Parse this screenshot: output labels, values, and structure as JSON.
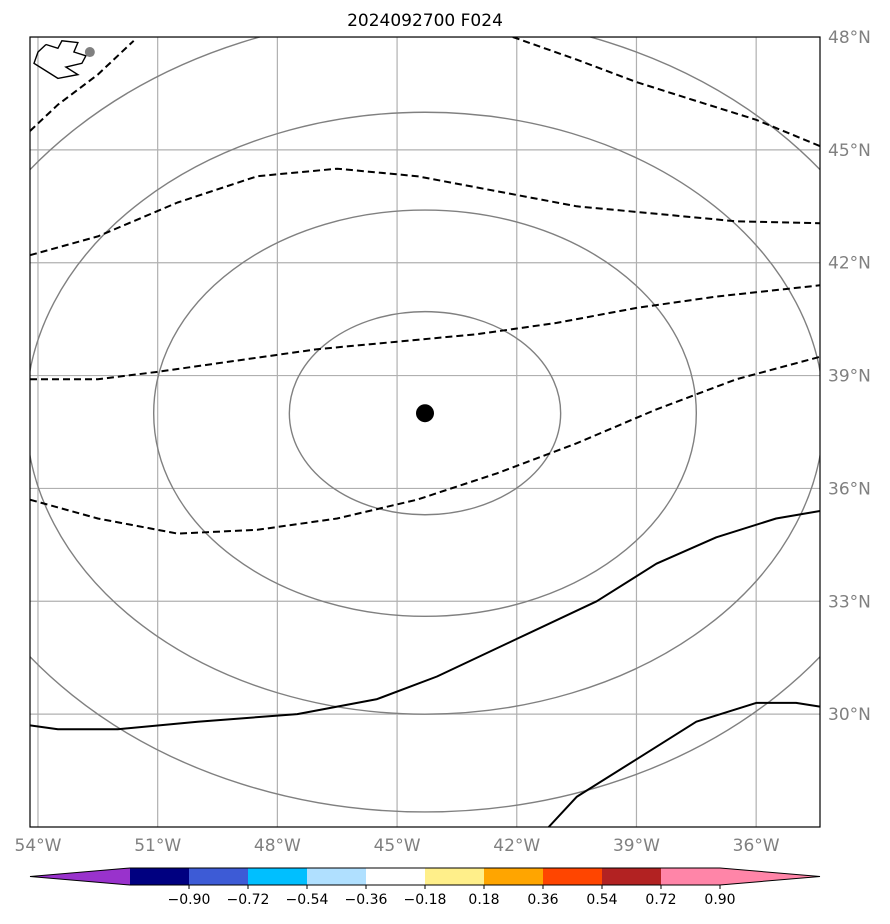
{
  "title": "2024092700 F024",
  "map": {
    "lon_range": [
      -54.2,
      -34.4
    ],
    "lat_range": [
      27.0,
      48.0
    ],
    "lon_ticks": [
      {
        "value": -54,
        "label": "54°W"
      },
      {
        "value": -51,
        "label": "51°W"
      },
      {
        "value": -48,
        "label": "48°W"
      },
      {
        "value": -45,
        "label": "45°W"
      },
      {
        "value": -42,
        "label": "42°W"
      },
      {
        "value": -39,
        "label": "39°W"
      },
      {
        "value": -36,
        "label": "36°W"
      }
    ],
    "lat_ticks": [
      {
        "value": 48,
        "label": "48°N"
      },
      {
        "value": 45,
        "label": "45°N"
      },
      {
        "value": 42,
        "label": "42°N"
      },
      {
        "value": 39,
        "label": "39°N"
      },
      {
        "value": 36,
        "label": "36°N"
      },
      {
        "value": 33,
        "label": "33°N"
      },
      {
        "value": 30,
        "label": "30°N"
      }
    ],
    "grid": true,
    "center": {
      "lon": -44.3,
      "lat": 38.0
    },
    "range_rings": [
      {
        "lon_radius": 3.4,
        "lat_radius": 2.7
      },
      {
        "lon_radius": 6.8,
        "lat_radius": 5.4
      },
      {
        "lon_radius": 10.0,
        "lat_radius": 8.0
      },
      {
        "lon_radius": 12.5,
        "lat_radius": 10.6
      }
    ],
    "contours": [
      {
        "style": "dashed",
        "points": [
          [
            -54.2,
            45.5
          ],
          [
            -53.5,
            46.2
          ],
          [
            -52.5,
            47.0
          ],
          [
            -51.6,
            47.9
          ]
        ]
      },
      {
        "style": "dashed",
        "points": [
          [
            -42.1,
            48.0
          ],
          [
            -40.5,
            47.4
          ],
          [
            -39.0,
            46.8
          ],
          [
            -37.5,
            46.3
          ],
          [
            -36.0,
            45.8
          ],
          [
            -34.4,
            45.1
          ]
        ]
      },
      {
        "style": "dashed",
        "points": [
          [
            -54.2,
            42.2
          ],
          [
            -52.5,
            42.7
          ],
          [
            -50.5,
            43.6
          ],
          [
            -48.5,
            44.3
          ],
          [
            -46.5,
            44.5
          ],
          [
            -44.5,
            44.3
          ],
          [
            -42.5,
            43.9
          ],
          [
            -40.5,
            43.5
          ],
          [
            -38.5,
            43.3
          ],
          [
            -36.5,
            43.1
          ],
          [
            -34.4,
            43.05
          ]
        ]
      },
      {
        "style": "dashed",
        "points": [
          [
            -54.2,
            38.9
          ],
          [
            -52.5,
            38.9
          ],
          [
            -51.0,
            39.1
          ],
          [
            -49.0,
            39.4
          ],
          [
            -47.0,
            39.7
          ],
          [
            -45.0,
            39.9
          ],
          [
            -43.0,
            40.1
          ],
          [
            -41.0,
            40.4
          ],
          [
            -39.0,
            40.8
          ],
          [
            -37.0,
            41.1
          ],
          [
            -34.4,
            41.4
          ]
        ]
      },
      {
        "style": "dashed",
        "points": [
          [
            -54.2,
            35.7
          ],
          [
            -52.5,
            35.2
          ],
          [
            -50.5,
            34.8
          ],
          [
            -48.5,
            34.9
          ],
          [
            -46.5,
            35.2
          ],
          [
            -44.5,
            35.7
          ],
          [
            -42.5,
            36.4
          ],
          [
            -40.5,
            37.2
          ],
          [
            -38.5,
            38.1
          ],
          [
            -36.5,
            38.9
          ],
          [
            -34.4,
            39.5
          ]
        ]
      },
      {
        "style": "solid",
        "points": [
          [
            -54.2,
            29.7
          ],
          [
            -53.5,
            29.6
          ],
          [
            -52.0,
            29.6
          ],
          [
            -50.0,
            29.8
          ],
          [
            -47.5,
            30.0
          ],
          [
            -45.5,
            30.4
          ],
          [
            -44.0,
            31.0
          ],
          [
            -42.0,
            32.0
          ],
          [
            -40.0,
            33.0
          ],
          [
            -38.5,
            34.0
          ],
          [
            -37.0,
            34.7
          ],
          [
            -35.5,
            35.2
          ],
          [
            -34.4,
            35.4
          ]
        ]
      },
      {
        "style": "solid",
        "points": [
          [
            -41.2,
            27.0
          ],
          [
            -40.5,
            27.8
          ],
          [
            -39.0,
            28.8
          ],
          [
            -37.5,
            29.8
          ],
          [
            -36.0,
            30.3
          ],
          [
            -35.0,
            30.3
          ],
          [
            -34.4,
            30.2
          ]
        ]
      }
    ],
    "coastline": [
      [
        -53.8,
        47.8
      ],
      [
        -53.5,
        47.7
      ],
      [
        -53.4,
        47.9
      ],
      [
        -53.0,
        47.85
      ],
      [
        -53.1,
        47.6
      ],
      [
        -52.8,
        47.5
      ],
      [
        -52.9,
        47.3
      ],
      [
        -53.3,
        47.2
      ],
      [
        -53.0,
        47.0
      ],
      [
        -53.5,
        46.9
      ],
      [
        -53.8,
        47.1
      ],
      [
        -54.1,
        47.3
      ],
      [
        -54.0,
        47.6
      ],
      [
        -53.8,
        47.8
      ]
    ],
    "coast_marker": {
      "lon": -52.7,
      "lat": 47.6
    }
  },
  "colorbar": {
    "colors": [
      "#9932cc",
      "#000080",
      "#3d5bd6",
      "#00bfff",
      "#b0e0ff",
      "#ffffff",
      "#ffef8a",
      "#ffa500",
      "#ff4500",
      "#b22222",
      "#ff85a8",
      "#ff85a8"
    ],
    "tick_labels": [
      "−0.90",
      "−0.72",
      "−0.54",
      "−0.36",
      "−0.18",
      "0.18",
      "0.36",
      "0.54",
      "0.72",
      "0.90"
    ]
  },
  "style_colors": {
    "grid": "#b0b0b0",
    "tick_label": "#808080",
    "ring": "#808080",
    "contour": "#000000"
  }
}
